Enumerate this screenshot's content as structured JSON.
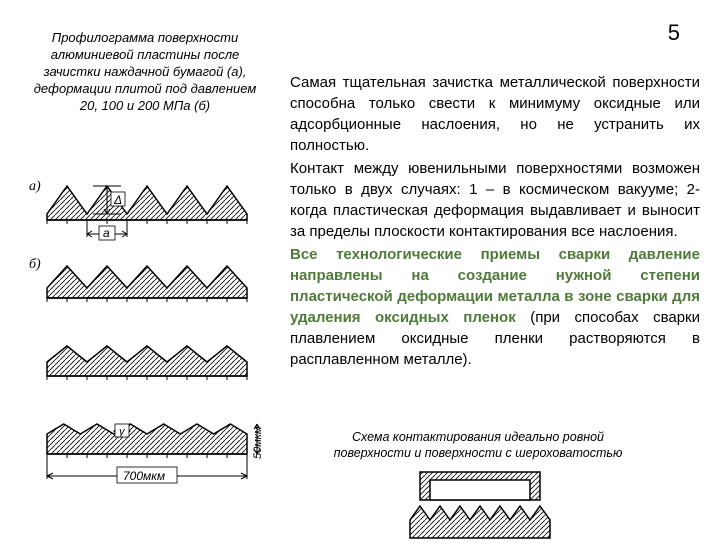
{
  "page_number": "5",
  "left_caption": "Профилограмма поверхности\nалюминиевой пластины после\nзачистки наждачной бумагой (а),\nдеформации плитой под давлением\n20, 100 и 200 МПа (б)",
  "paragraphs": {
    "p1": "Самая тщательная зачистка металлической поверхности способна только свести к минимуму оксидные или адсорбционные наслоения, но не устранить их полностью.",
    "p2": "Контакт между ювенильными поверхностями возможен только в двух случаях: 1 – в космическом вакууме; 2- когда пластическая деформация выдавливает и выносит за пределы плоскости контактирования все наслоения.",
    "p3_green": "Все технологические приемы сварки давление направлены на создание нужной степени пластической деформации металла в зоне сварки для удаления оксидных пленок",
    "p3_tail": " (при способах сварки плавлением оксидные пленки растворяются в расплавленном металле)."
  },
  "second_caption": "Схема контактирования идеально ровной\nповерхности и поверхности с шероховатостью",
  "left_diagram": {
    "rows": [
      {
        "label": "а)",
        "amplitude": 28,
        "period": 42,
        "n": 5,
        "base": 6,
        "show_a": true,
        "show_delta": true
      },
      {
        "label": "б)",
        "amplitude": 22,
        "period": 40,
        "n": 5,
        "base": 10,
        "show_a": false,
        "show_delta": false
      },
      {
        "label": "",
        "amplitude": 16,
        "period": 42,
        "n": 5,
        "base": 14,
        "show_a": false,
        "show_delta": false
      },
      {
        "label": "",
        "amplitude": 10,
        "period": 36,
        "n": 6,
        "base": 20,
        "show_a": false,
        "show_delta": false,
        "show_y": true
      }
    ],
    "width_label": "700мкм",
    "height_label": "50мкм",
    "delta_label": "Δ",
    "a_label": "a",
    "y_label": "y",
    "stroke": "#000000",
    "hatch_gap": 5
  },
  "bottom_diagram": {
    "stroke": "#000000"
  }
}
